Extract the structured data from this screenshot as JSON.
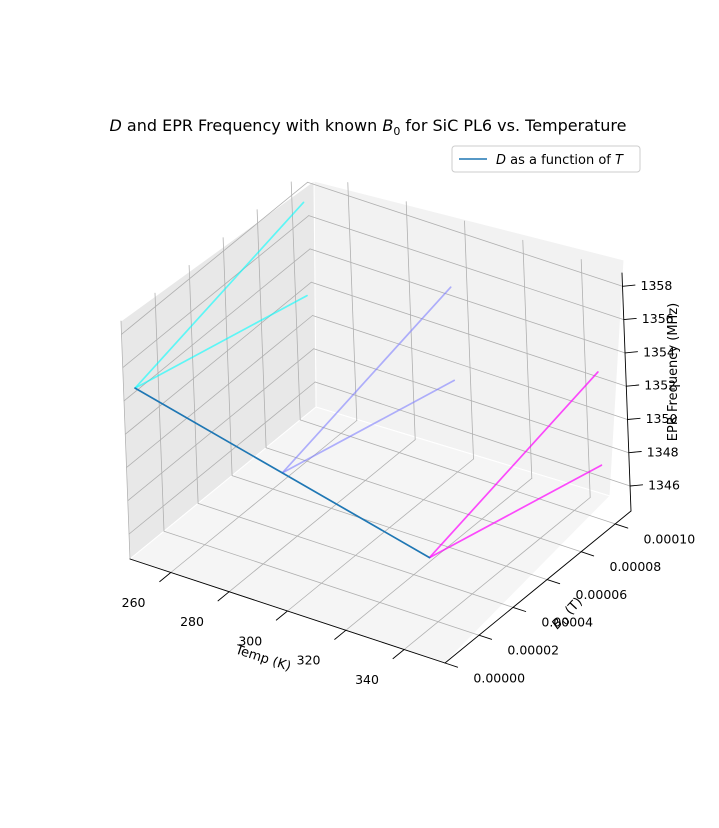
{
  "chart_data": {
    "type": "line",
    "projection": "3d",
    "title": {
      "italic_d": "D",
      "part1": " and EPR Frequency with known ",
      "italic_b": "B",
      "subscript": "0",
      "part2": " for SiC PL6 vs. Temperature"
    },
    "xlabel": "Temp (K)",
    "ylabel": {
      "italic_b": "B",
      "subscript": "0",
      "unit": " (T)"
    },
    "zlabel": "EPR Frequency (MHz)",
    "xlim": [
      246,
      354
    ],
    "ylim": [
      0,
      0.0001093
    ],
    "zlim": [
      1344.5,
      1358.8
    ],
    "x_ticks": [
      260,
      280,
      300,
      320,
      340
    ],
    "y_ticks": [
      0.0,
      2e-05,
      4e-05,
      6e-05,
      8e-05,
      0.0001
    ],
    "y_tick_labels": [
      "0.00000",
      "0.00002",
      "0.00004",
      "0.00006",
      "0.00008",
      "0.00010"
    ],
    "z_ticks": [
      1346,
      1348,
      1350,
      1352,
      1354,
      1356,
      1358
    ],
    "grid": true,
    "legend": {
      "italic_d": "D",
      "text": " as a function of ",
      "italic_t": "T",
      "placement": "upper right"
    },
    "series": [
      {
        "name": "D as a function of T",
        "color": "#1f77b4",
        "x": [
          250,
          300,
          350
        ],
        "y": [
          0,
          0,
          0
        ],
        "z": [
          1355.0,
          1352.8,
          1350.6
        ]
      },
      {
        "color": "#00ffff",
        "opacity": 0.6,
        "x": [
          250,
          250
        ],
        "y": [
          0,
          0.0001
        ],
        "z": [
          1355.0,
          1357.8
        ]
      },
      {
        "color": "#00ffff",
        "opacity": 0.6,
        "x": [
          250,
          250
        ],
        "y": [
          0,
          0.0001
        ],
        "z": [
          1355.0,
          1352.2
        ]
      },
      {
        "color": "#7f7fff",
        "opacity": 0.6,
        "x": [
          300,
          300
        ],
        "y": [
          0,
          0.0001
        ],
        "z": [
          1352.8,
          1355.6
        ]
      },
      {
        "color": "#7f7fff",
        "opacity": 0.6,
        "x": [
          300,
          300
        ],
        "y": [
          0,
          0.0001
        ],
        "z": [
          1352.8,
          1350.0
        ]
      },
      {
        "color": "#ff00ff",
        "opacity": 0.7,
        "x": [
          350,
          350
        ],
        "y": [
          0,
          0.0001
        ],
        "z": [
          1350.6,
          1353.4
        ]
      },
      {
        "color": "#ff00ff",
        "opacity": 0.7,
        "x": [
          350,
          350
        ],
        "y": [
          0,
          0.0001
        ],
        "z": [
          1350.6,
          1347.8
        ]
      }
    ]
  }
}
